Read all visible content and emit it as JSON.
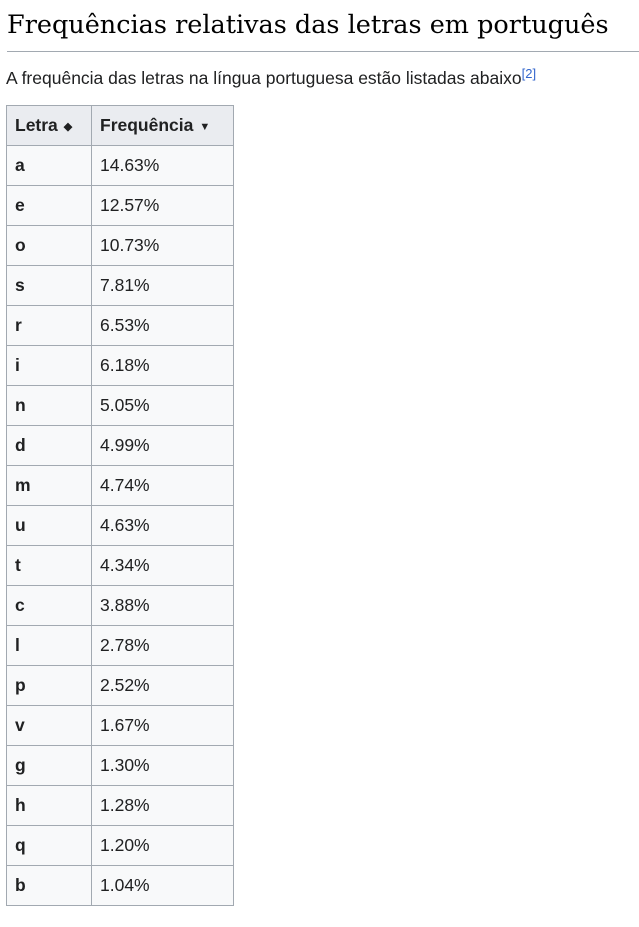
{
  "section": {
    "title": "Frequências relativas das letras em português",
    "intro_text": "A frequência das letras na língua portuguesa estão listadas abaixo",
    "citation": "[2]"
  },
  "table": {
    "headers": [
      {
        "label": "Letra",
        "sort_icon": "sort-both-icon",
        "sort_glyph": "◆"
      },
      {
        "label": "Frequência",
        "sort_icon": "sort-descending-icon",
        "sort_glyph": "▼"
      }
    ],
    "rows": [
      {
        "letter": "a",
        "frequency": "14.63%"
      },
      {
        "letter": "e",
        "frequency": "12.57%"
      },
      {
        "letter": "o",
        "frequency": "10.73%"
      },
      {
        "letter": "s",
        "frequency": "7.81%"
      },
      {
        "letter": "r",
        "frequency": "6.53%"
      },
      {
        "letter": "i",
        "frequency": "6.18%"
      },
      {
        "letter": "n",
        "frequency": "5.05%"
      },
      {
        "letter": "d",
        "frequency": "4.99%"
      },
      {
        "letter": "m",
        "frequency": "4.74%"
      },
      {
        "letter": "u",
        "frequency": "4.63%"
      },
      {
        "letter": "t",
        "frequency": "4.34%"
      },
      {
        "letter": "c",
        "frequency": "3.88%"
      },
      {
        "letter": "l",
        "frequency": "2.78%"
      },
      {
        "letter": "p",
        "frequency": "2.52%"
      },
      {
        "letter": "v",
        "frequency": "1.67%"
      },
      {
        "letter": "g",
        "frequency": "1.30%"
      },
      {
        "letter": "h",
        "frequency": "1.28%"
      },
      {
        "letter": "q",
        "frequency": "1.20%"
      },
      {
        "letter": "b",
        "frequency": "1.04%"
      }
    ]
  },
  "colors": {
    "link": "#3366cc",
    "header_bg": "#eaecf0",
    "cell_bg": "#f8f9fa",
    "border": "#a2a9b1",
    "text": "#202122"
  }
}
